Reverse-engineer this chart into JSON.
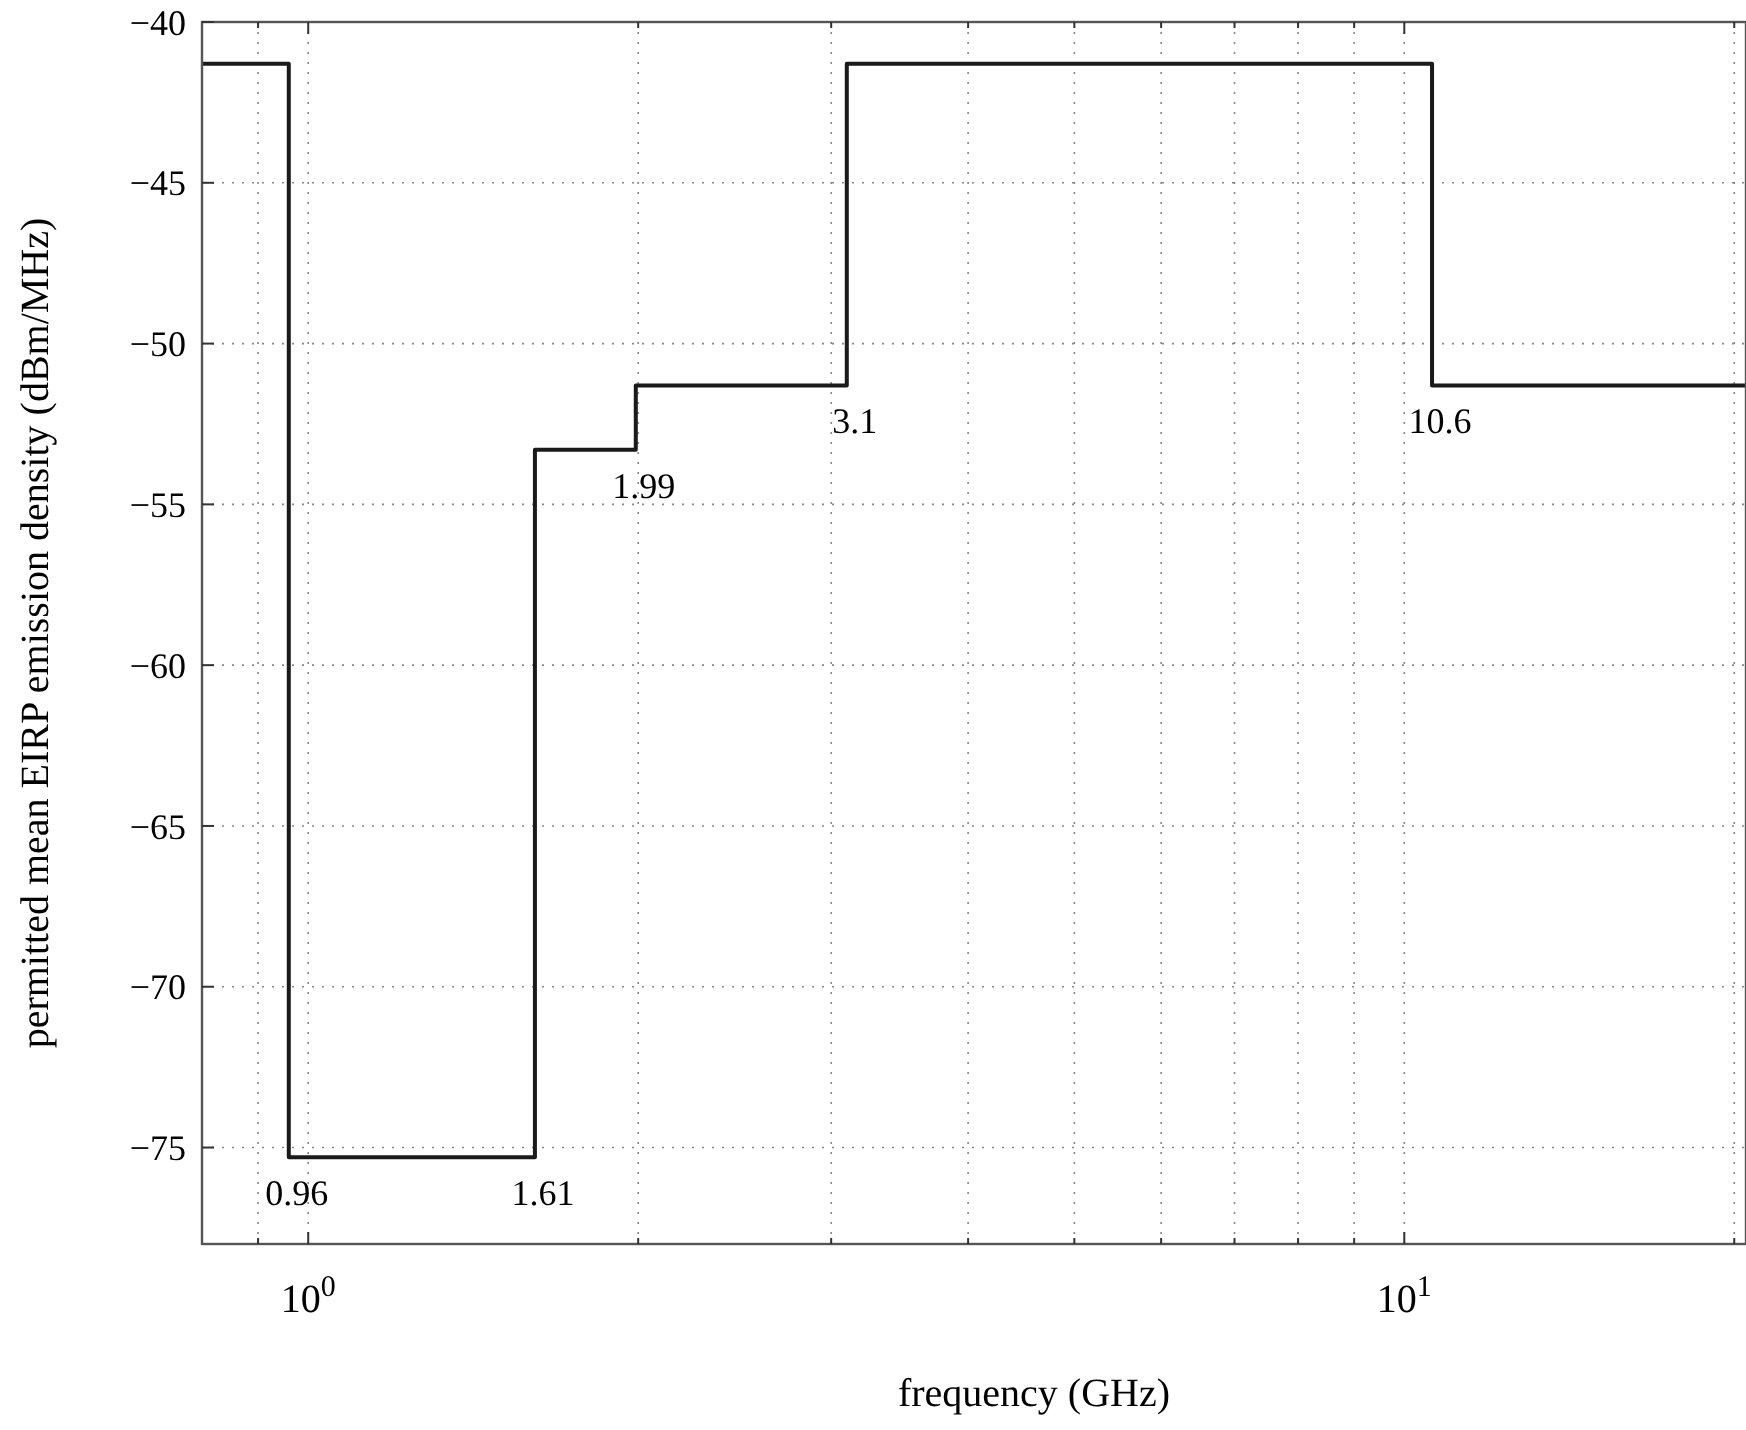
{
  "chart_data": {
    "type": "step",
    "xlabel": "frequency (GHz)",
    "ylabel": "permitted mean EIRP emission density (dBm/MHz)",
    "log": "x",
    "grid": true,
    "line_style": "solid",
    "xlim": [
      0.8,
      20.5
    ],
    "ylim": [
      -78,
      -40
    ],
    "xticks": [
      {
        "value": 0.9,
        "label": null
      },
      {
        "value": 1,
        "label": "10$^{0}$"
      },
      {
        "value": 2,
        "label": null
      },
      {
        "value": 3,
        "label": null
      },
      {
        "value": 4,
        "label": null
      },
      {
        "value": 5,
        "label": null
      },
      {
        "value": 6,
        "label": null
      },
      {
        "value": 7,
        "label": null
      },
      {
        "value": 8,
        "label": null
      },
      {
        "value": 9,
        "label": null
      },
      {
        "value": 10,
        "label": "10$^{1}$"
      },
      {
        "value": 20,
        "label": null
      }
    ],
    "yticks": [
      {
        "value": -75,
        "label": "−75"
      },
      {
        "value": -70,
        "label": "−70"
      },
      {
        "value": -65,
        "label": "−65"
      },
      {
        "value": -60,
        "label": "−60"
      },
      {
        "value": -55,
        "label": "−55"
      },
      {
        "value": -50,
        "label": "−50"
      },
      {
        "value": -45,
        "label": "−45"
      },
      {
        "value": -40,
        "label": "−40"
      }
    ],
    "series": [
      {
        "color": "#1a1a1a",
        "x": [
          0.8,
          0.96,
          1.61,
          1.99,
          3.1,
          10.6,
          20.5
        ],
        "values": [
          -41.3,
          -75.3,
          -53.3,
          -51.3,
          -41.3,
          -51.3,
          -51.3
        ]
      }
    ],
    "annotations": [
      {
        "text": "0.96",
        "x": 0.96,
        "y": -75.3
      },
      {
        "text": "1.61",
        "x": 1.61,
        "y": -75.3
      },
      {
        "text": "1.99",
        "x": 1.99,
        "y": -53.3
      },
      {
        "text": "3.1",
        "x": 3.1,
        "y": -51.3
      },
      {
        "text": "10.6",
        "x": 10.6,
        "y": -51.3
      }
    ]
  }
}
